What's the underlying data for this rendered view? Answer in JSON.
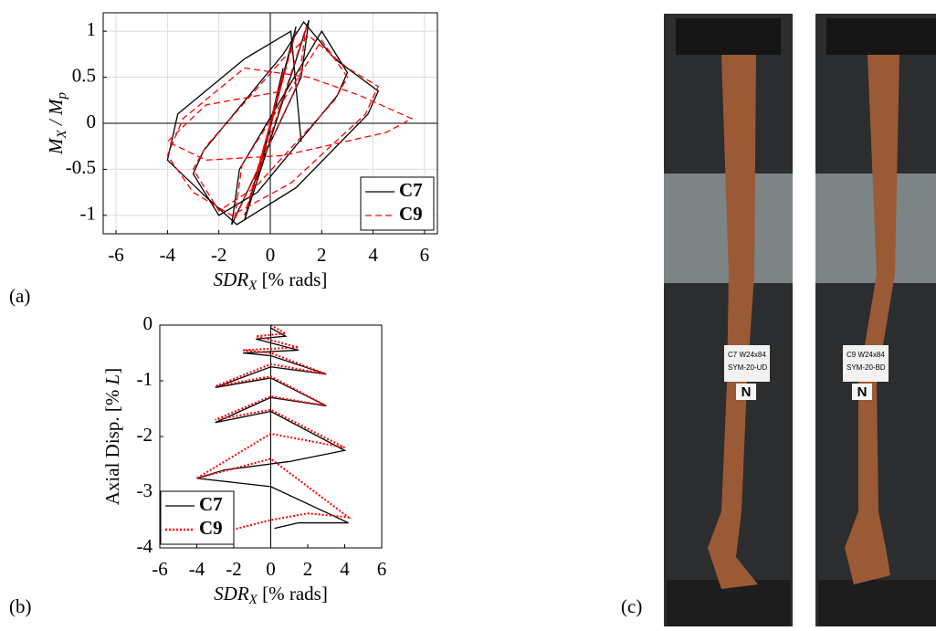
{
  "chart_data": [
    {
      "type": "line",
      "xlabel": [
        "SDR",
        "X",
        " [% rads]"
      ],
      "ylabel": [
        "M",
        "X",
        " / M",
        "p"
      ],
      "xlim": [
        -6.5,
        6.5
      ],
      "ylim": [
        -1.2,
        1.2
      ],
      "xticks": [
        -6,
        -4,
        -2,
        0,
        2,
        4,
        6
      ],
      "yticks": [
        -1,
        -0.5,
        0,
        0.5,
        1
      ],
      "grid": true,
      "legend": "lower right",
      "series": [
        {
          "name": "C7",
          "color": "#000000",
          "linestyle": "solid",
          "x": [
            0,
            0.5,
            -0.5,
            1,
            -1,
            1.5,
            1.2,
            -1.5,
            -1.2,
            2,
            3,
            2.6,
            -0.5,
            -2,
            -3,
            -2.6,
            0.5,
            1.3,
            2.5,
            4.2,
            3.8,
            1,
            -1.3,
            -2.5,
            -4,
            -3.6,
            -1,
            0.8,
            1.2
          ],
          "values": [
            0,
            0.6,
            -0.6,
            1.05,
            -1.05,
            1.12,
            0.5,
            -1.1,
            -0.5,
            1,
            0.55,
            0.3,
            -0.75,
            -1,
            -0.55,
            -0.3,
            0.75,
            1.1,
            0.7,
            0.35,
            0.1,
            -0.7,
            -1.1,
            -0.8,
            -0.4,
            0.1,
            0.7,
            1,
            -0.2
          ]
        },
        {
          "name": "C9",
          "color": "#ff0000",
          "linestyle": "dashed",
          "x": [
            0,
            0.5,
            -0.5,
            1,
            -1,
            1.4,
            1.1,
            -1.4,
            -1.1,
            2,
            3,
            2.5,
            -0.6,
            -2,
            -3,
            -2.5,
            0.5,
            1.5,
            3,
            4.2,
            3.7,
            0.8,
            -1.5,
            -3,
            -4,
            -3.4,
            -1,
            1.5,
            3.5,
            5.5,
            4.5,
            0.5,
            -2.5,
            -4,
            -2.5,
            0.5
          ],
          "values": [
            0,
            0.55,
            -0.55,
            1,
            -1,
            1.05,
            0.45,
            -1.05,
            -0.45,
            0.9,
            0.5,
            0.25,
            -0.7,
            -0.95,
            -0.5,
            -0.25,
            0.7,
            0.95,
            0.6,
            0.4,
            0.1,
            -0.65,
            -1,
            -0.75,
            -0.35,
            0.05,
            0.6,
            0.5,
            0.3,
            0.05,
            -0.1,
            -0.35,
            -0.4,
            -0.2,
            0.2,
            0.35
          ]
        }
      ]
    },
    {
      "type": "line",
      "xlabel": [
        "SDR",
        "X",
        " [% rads]"
      ],
      "ylabel": [
        "Axial Disp. [% ",
        "L",
        "]"
      ],
      "xlim": [
        -6,
        6
      ],
      "ylim": [
        -4,
        0
      ],
      "xticks": [
        -6,
        -4,
        -2,
        0,
        2,
        4,
        6
      ],
      "yticks": [
        -4,
        -3,
        -2,
        -1,
        0
      ],
      "grid": false,
      "legend": "lower left",
      "series": [
        {
          "name": "C7",
          "color": "#000000",
          "linestyle": "solid",
          "x": [
            0,
            0.8,
            -0.8,
            1.5,
            -1.5,
            0,
            3,
            0,
            -3,
            0,
            3,
            0,
            -3,
            0,
            4,
            1,
            -2.5,
            -4,
            0,
            4.2,
            1.5,
            0.2
          ],
          "values": [
            -0.05,
            -0.2,
            -0.25,
            -0.45,
            -0.5,
            -0.55,
            -0.88,
            -0.75,
            -1.12,
            -0.95,
            -1.45,
            -1.3,
            -1.75,
            -1.55,
            -2.25,
            -2.45,
            -2.6,
            -2.75,
            -2.9,
            -3.55,
            -3.55,
            -3.65
          ]
        },
        {
          "name": "C9",
          "color": "#ff0000",
          "linestyle": "dotted",
          "x": [
            0,
            0.8,
            -0.8,
            1.5,
            -1.5,
            0,
            3,
            0,
            -3,
            0,
            3,
            0,
            -3,
            0,
            4,
            0,
            -4,
            0,
            4.2,
            2,
            0,
            -3
          ],
          "values": [
            0,
            -0.15,
            -0.2,
            -0.4,
            -0.45,
            -0.5,
            -0.88,
            -0.7,
            -1.1,
            -0.92,
            -1.45,
            -1.28,
            -1.7,
            -1.52,
            -2.2,
            -1.95,
            -2.75,
            -2.4,
            -3.45,
            -3.38,
            -3.5,
            -3.75
          ]
        }
      ]
    }
  ],
  "panels": [
    "(a)",
    "(b)",
    "(c)"
  ],
  "photos": [
    {
      "tag": "C7  W24x84",
      "code": "SYM-20-UD",
      "mark": "N"
    },
    {
      "tag": "C9  W24x84",
      "code": "SYM-20-BD",
      "mark": "N"
    }
  ]
}
